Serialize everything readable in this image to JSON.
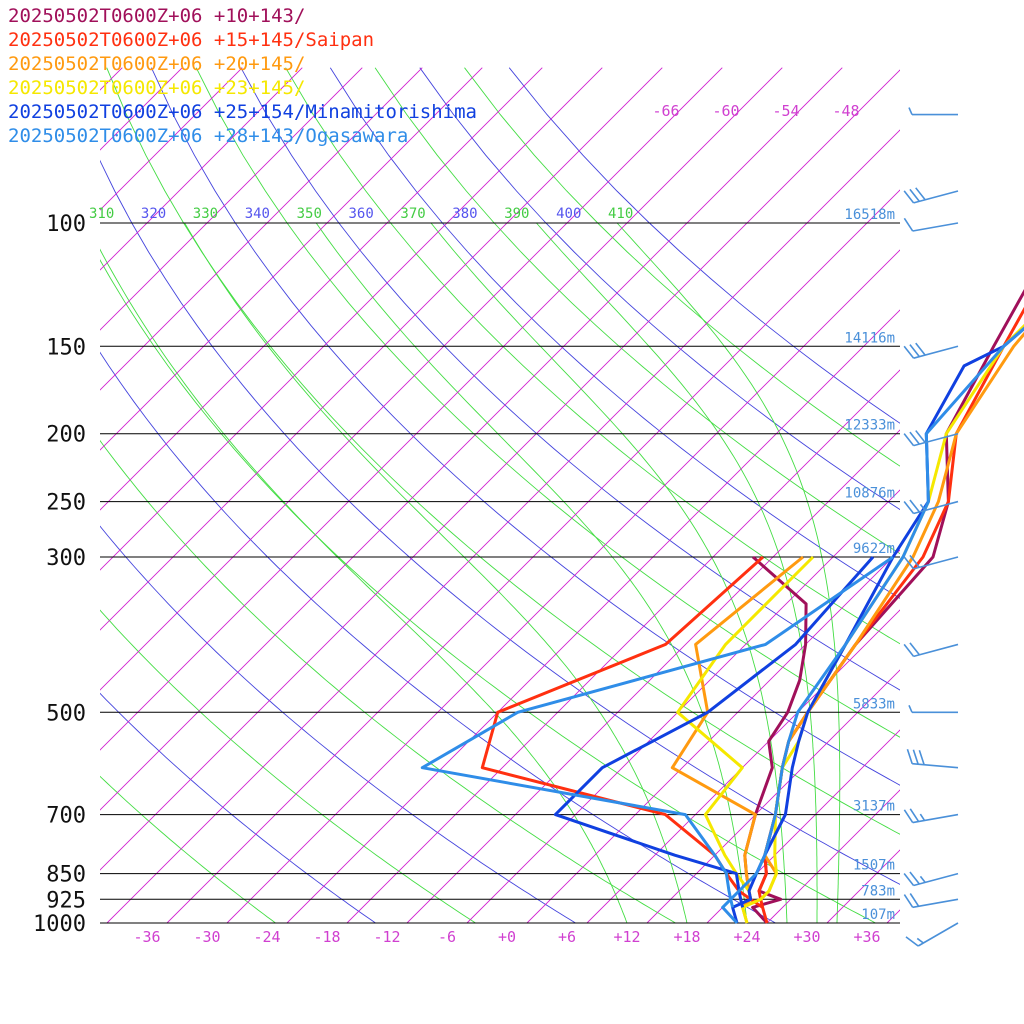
{
  "chart_data": {
    "type": "line",
    "title": "",
    "xlabel": "",
    "ylabel": "",
    "x_ticks": [
      "-36",
      "-30",
      "-24",
      "-18",
      "-12",
      "-6",
      "+0",
      "+6",
      "+12",
      "+18",
      "+24",
      "+30",
      "+36"
    ],
    "x_range": [
      -40,
      40
    ],
    "y_log_pressure_range": [
      100,
      1000
    ],
    "pressure_levels": [
      {
        "p": 100,
        "label": "100",
        "height": "16518m"
      },
      {
        "p": 150,
        "label": "150",
        "height": "14116m"
      },
      {
        "p": 200,
        "label": "200",
        "height": "12333m"
      },
      {
        "p": 250,
        "label": "250",
        "height": "10876m"
      },
      {
        "p": 300,
        "label": "300",
        "height": "9622m"
      },
      {
        "p": 500,
        "label": "500",
        "height": "5833m"
      },
      {
        "p": 700,
        "label": "700",
        "height": "3137m"
      },
      {
        "p": 850,
        "label": "850",
        "height": "1507m"
      },
      {
        "p": 925,
        "label": "925",
        "height": "783m"
      },
      {
        "p": 1000,
        "label": "1000",
        "height": "107m"
      }
    ],
    "upper_temp_labels": [
      "-66",
      "-60",
      "-54",
      "-48"
    ],
    "theta_labels": [
      {
        "v": "310",
        "color": "#44cc44"
      },
      {
        "v": "320",
        "color": "#5555ee"
      },
      {
        "v": "330",
        "color": "#44cc44"
      },
      {
        "v": "340",
        "color": "#5555ee"
      },
      {
        "v": "350",
        "color": "#44cc44"
      },
      {
        "v": "360",
        "color": "#5555ee"
      },
      {
        "v": "370",
        "color": "#44cc44"
      },
      {
        "v": "380",
        "color": "#5555ee"
      },
      {
        "v": "390",
        "color": "#44cc44"
      },
      {
        "v": "400",
        "color": "#5555ee"
      },
      {
        "v": "410",
        "color": "#44cc44"
      }
    ],
    "colors": {
      "axis": "#000000",
      "isotherm": "#d020d0",
      "dry_adiabat_a": "#44dd44",
      "dry_adiabat_b": "#4444dd",
      "moist_adiabat": "#44dd44",
      "wind_barb": "#4a90d9"
    },
    "series": [
      {
        "name": "20250502T0600Z+06 +10+143/",
        "color": "#a0105a",
        "temperature": [
          [
            60,
            23
          ],
          [
            70,
            13
          ],
          [
            80,
            2
          ],
          [
            100,
            -9
          ],
          [
            120,
            -12
          ],
          [
            150,
            -9
          ],
          [
            200,
            -5
          ],
          [
            250,
            2
          ],
          [
            300,
            6
          ],
          [
            400,
            7
          ],
          [
            500,
            9
          ],
          [
            550,
            10
          ],
          [
            600,
            12
          ],
          [
            700,
            16
          ],
          [
            800,
            19
          ],
          [
            850,
            21
          ],
          [
            900,
            22
          ],
          [
            925,
            25
          ],
          [
            950,
            23
          ],
          [
            1000,
            26
          ]
        ],
        "dewpoint": [
          [
            300,
            -12
          ],
          [
            350,
            -2
          ],
          [
            400,
            2
          ],
          [
            450,
            5
          ],
          [
            500,
            7
          ],
          [
            550,
            8
          ],
          [
            600,
            11
          ],
          [
            700,
            14
          ],
          [
            800,
            17
          ],
          [
            850,
            19
          ],
          [
            900,
            21
          ]
        ]
      },
      {
        "name": "20250502T0600Z+06 +15+145/Saipan",
        "color": "#ff3010",
        "temperature": [
          [
            60,
            23
          ],
          [
            80,
            4
          ],
          [
            100,
            -7
          ],
          [
            120,
            -11
          ],
          [
            150,
            -8
          ],
          [
            200,
            -4
          ],
          [
            250,
            2
          ],
          [
            300,
            5
          ],
          [
            400,
            7
          ],
          [
            500,
            9
          ],
          [
            550,
            10
          ],
          [
            600,
            12
          ],
          [
            700,
            16
          ],
          [
            800,
            19
          ],
          [
            850,
            21
          ],
          [
            900,
            22
          ],
          [
            925,
            23
          ],
          [
            950,
            24
          ],
          [
            1000,
            26
          ]
        ],
        "dewpoint": [
          [
            300,
            -11
          ],
          [
            400,
            -12
          ],
          [
            500,
            -22
          ],
          [
            600,
            -18
          ],
          [
            700,
            5
          ],
          [
            800,
            14
          ],
          [
            850,
            17
          ],
          [
            900,
            20
          ],
          [
            925,
            22
          ],
          [
            950,
            24
          ]
        ]
      },
      {
        "name": "20250502T0600Z+06 +20+145/",
        "color": "#ff9a10",
        "temperature": [
          [
            60,
            24
          ],
          [
            80,
            5
          ],
          [
            100,
            -7
          ],
          [
            120,
            -8
          ],
          [
            150,
            -7
          ],
          [
            200,
            -4
          ],
          [
            250,
            1
          ],
          [
            300,
            4
          ],
          [
            400,
            7
          ],
          [
            500,
            9
          ],
          [
            550,
            10
          ],
          [
            600,
            12
          ],
          [
            700,
            16
          ],
          [
            800,
            19
          ],
          [
            850,
            22
          ],
          [
            900,
            23
          ],
          [
            925,
            23
          ],
          [
            950,
            22
          ],
          [
            1000,
            24
          ]
        ],
        "dewpoint": [
          [
            300,
            -7
          ],
          [
            400,
            -9
          ],
          [
            500,
            -1
          ],
          [
            600,
            1
          ],
          [
            700,
            14
          ],
          [
            800,
            17
          ],
          [
            850,
            19
          ],
          [
            900,
            21
          ],
          [
            925,
            22
          ],
          [
            950,
            22
          ]
        ]
      },
      {
        "name": "20250502T0600Z+06 +23+145/",
        "color": "#f5e800",
        "temperature": [
          [
            60,
            25
          ],
          [
            80,
            6
          ],
          [
            100,
            -6
          ],
          [
            120,
            -8
          ],
          [
            150,
            -8
          ],
          [
            200,
            -5
          ],
          [
            250,
            0
          ],
          [
            300,
            3
          ],
          [
            400,
            6
          ],
          [
            500,
            9
          ],
          [
            550,
            11
          ],
          [
            600,
            12
          ],
          [
            700,
            16
          ],
          [
            800,
            20
          ],
          [
            850,
            22
          ],
          [
            900,
            23
          ],
          [
            925,
            23
          ],
          [
            950,
            22
          ],
          [
            1000,
            24
          ]
        ],
        "dewpoint": [
          [
            300,
            -6
          ],
          [
            400,
            -6
          ],
          [
            500,
            -4
          ],
          [
            600,
            8
          ],
          [
            700,
            9
          ],
          [
            800,
            15
          ],
          [
            850,
            18
          ],
          [
            900,
            21
          ],
          [
            925,
            22
          ]
        ]
      },
      {
        "name": "20250502T0600Z+06 +25+154/Minamitorishima",
        "color": "#1040e0",
        "temperature": [
          [
            60,
            26
          ],
          [
            80,
            7
          ],
          [
            100,
            -5
          ],
          [
            120,
            -7
          ],
          [
            150,
            -8
          ],
          [
            160,
            -10
          ],
          [
            200,
            -7
          ],
          [
            250,
            0
          ],
          [
            300,
            2
          ],
          [
            400,
            6
          ],
          [
            500,
            9
          ],
          [
            550,
            11
          ],
          [
            600,
            13
          ],
          [
            700,
            17
          ],
          [
            800,
            19
          ],
          [
            850,
            20
          ],
          [
            900,
            21
          ],
          [
            925,
            22
          ],
          [
            950,
            21
          ],
          [
            1000,
            23
          ]
        ],
        "dewpoint": [
          [
            300,
            0
          ],
          [
            400,
            1
          ],
          [
            500,
            -1
          ],
          [
            600,
            -6
          ],
          [
            700,
            -6
          ],
          [
            800,
            10
          ],
          [
            850,
            18
          ],
          [
            900,
            20
          ],
          [
            925,
            21
          ],
          [
            950,
            22
          ]
        ]
      },
      {
        "name": "20250502T0600Z+06 +28+143/Ogasawara",
        "color": "#2f8de8",
        "temperature": [
          [
            60,
            27
          ],
          [
            80,
            10
          ],
          [
            100,
            -3
          ],
          [
            120,
            -7
          ],
          [
            150,
            -8
          ],
          [
            200,
            -7
          ],
          [
            250,
            0
          ],
          [
            300,
            3
          ],
          [
            400,
            6
          ],
          [
            500,
            8
          ],
          [
            550,
            10
          ],
          [
            600,
            12
          ],
          [
            700,
            16
          ],
          [
            800,
            19
          ],
          [
            850,
            20
          ],
          [
            900,
            20
          ],
          [
            925,
            20
          ],
          [
            950,
            20
          ],
          [
            1000,
            23
          ]
        ],
        "dewpoint": [
          [
            300,
            2
          ],
          [
            400,
            -2
          ],
          [
            500,
            -20
          ],
          [
            600,
            -24
          ],
          [
            700,
            7
          ],
          [
            800,
            14
          ],
          [
            850,
            17
          ],
          [
            900,
            19
          ],
          [
            925,
            20
          ],
          [
            950,
            21
          ]
        ]
      }
    ],
    "wind_barbs": [
      {
        "p": 70,
        "dir": 270,
        "speed": 5
      },
      {
        "p": 90,
        "dir": 255,
        "speed": 30
      },
      {
        "p": 100,
        "dir": 260,
        "speed": 10
      },
      {
        "p": 150,
        "dir": 255,
        "speed": 30
      },
      {
        "p": 200,
        "dir": 255,
        "speed": 30
      },
      {
        "p": 250,
        "dir": 255,
        "speed": 25
      },
      {
        "p": 300,
        "dir": 255,
        "speed": 20
      },
      {
        "p": 400,
        "dir": 255,
        "speed": 20
      },
      {
        "p": 500,
        "dir": 270,
        "speed": 5
      },
      {
        "p": 600,
        "dir": 275,
        "speed": 30
      },
      {
        "p": 700,
        "dir": 260,
        "speed": 25
      },
      {
        "p": 850,
        "dir": 255,
        "speed": 25
      },
      {
        "p": 925,
        "dir": 260,
        "speed": 20
      },
      {
        "p": 1000,
        "dir": 240,
        "speed": 15
      }
    ]
  }
}
